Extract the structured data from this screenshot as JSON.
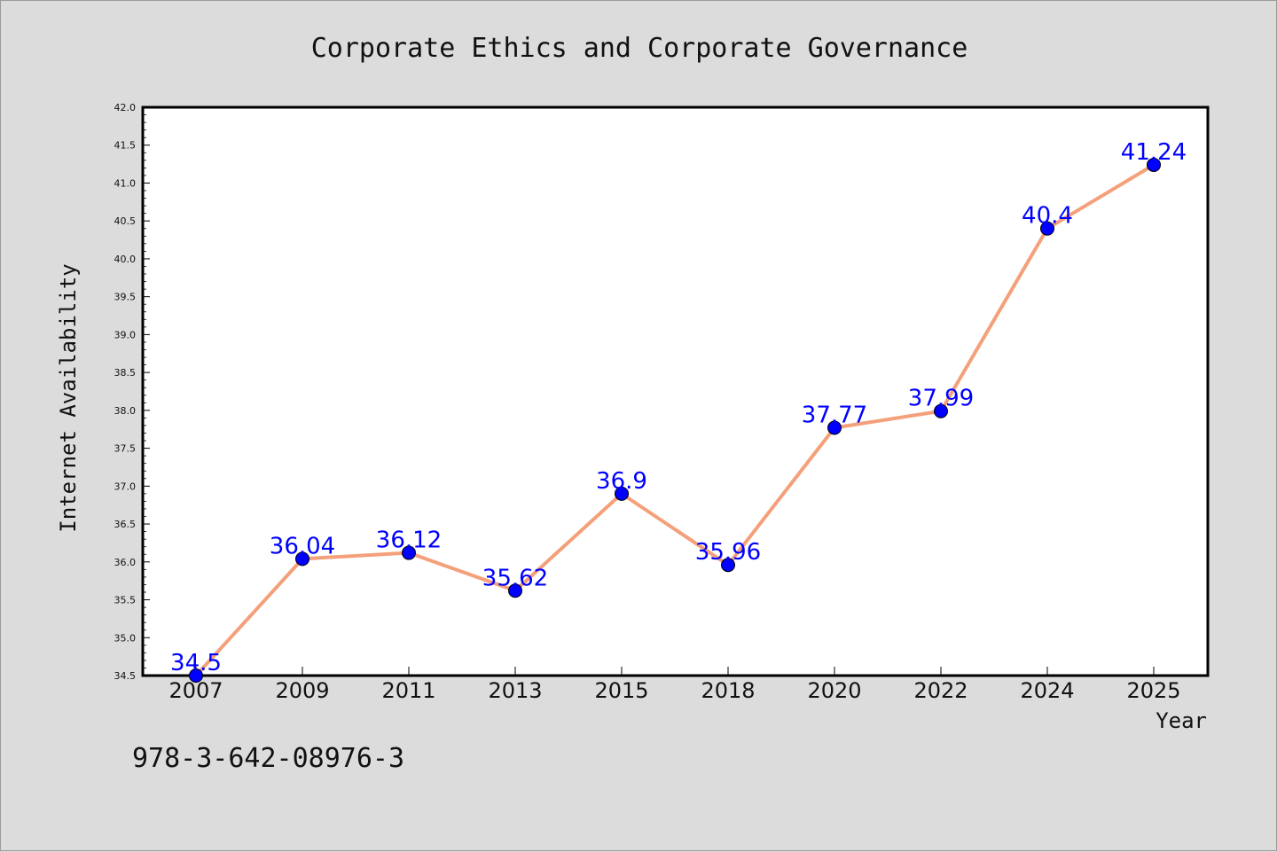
{
  "chart_data": {
    "type": "line",
    "title": "Corporate Ethics and Corporate Governance",
    "xlabel": "Year",
    "ylabel": "Internet Availability",
    "categories": [
      "2007",
      "2009",
      "2011",
      "2013",
      "2015",
      "2018",
      "2020",
      "2022",
      "2024",
      "2025"
    ],
    "series": [
      {
        "values": [
          34.5,
          36.04,
          36.12,
          35.62,
          36.9,
          35.96,
          37.77,
          37.99,
          40.4,
          41.24
        ],
        "data_labels": [
          "34.5",
          "36.04",
          "36.12",
          "35.62",
          "36.9",
          "35.96",
          "37.77",
          "37.99",
          "40.4",
          "41.24"
        ],
        "line_color": "#f4a07a",
        "marker_color": "#0000ff"
      }
    ],
    "ylim": [
      34.5,
      42.0
    ],
    "yticks": [
      "34.5",
      "35.0",
      "35.5",
      "36.0",
      "36.5",
      "37.0",
      "37.5",
      "38.0",
      "38.5",
      "39.0",
      "39.5",
      "40.0",
      "40.5",
      "41.0",
      "41.5",
      "42.0"
    ],
    "grid": false,
    "legend": "none"
  },
  "annotation": {
    "isbn": "978-3-642-08976-3"
  },
  "colors": {
    "background": "#dcdcdc",
    "plot_background": "#ffffff",
    "line": "#f4a07a",
    "marker": "#0000ff",
    "data_label": "#0000ff"
  }
}
